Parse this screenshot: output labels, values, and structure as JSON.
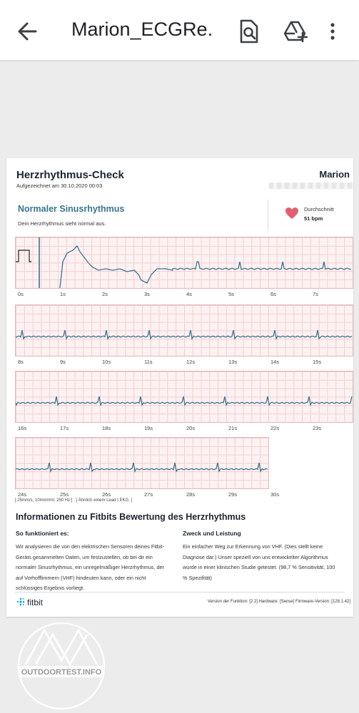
{
  "appbar": {
    "title": "Marion_ECGRe...",
    "back_icon": "arrow-back-icon",
    "actions": [
      "search-document-icon",
      "add-to-drive-icon",
      "more-vert-icon"
    ]
  },
  "report": {
    "title": "Herzrhythmus-Check",
    "recorded": "Aufgezeichnet am 30.10.2020 00:03",
    "name": "Marion",
    "rhythm_title": "Normaler Sinusrhythmus",
    "rhythm_desc": "Dein Herzrhythmus sieht normal aus.",
    "hr_label": "Durchschnitt",
    "hr_value": "51 bpm",
    "heart_color": "#e45f6d",
    "trace_color": "#3a7590",
    "grid_color": "#f1c9c9",
    "rows": [
      {
        "ticks": [
          "0s",
          "1s",
          "2s",
          "3s",
          "4s",
          "5s",
          "6s",
          "7s"
        ]
      },
      {
        "ticks": [
          "8s",
          "9s",
          "10s",
          "11s",
          "12s",
          "13s",
          "14s",
          "15s"
        ]
      },
      {
        "ticks": [
          "16s",
          "17s",
          "18s",
          "19s",
          "20s",
          "21s",
          "22s",
          "23s"
        ]
      },
      {
        "ticks": [
          "24s",
          "25s",
          "26s",
          "27s",
          "28s",
          "29s",
          "30s"
        ]
      }
    ],
    "ecg_note": "[ 25mm/s, 10mm/mV, 250 Hz ] : [ Ähnlich einem Lead I EKG. ]",
    "info_title": "Informationen zu Fitbits Bewertung des Herzrhythmus",
    "col1_heading": "So funktioniert es:",
    "col1_text": "Wir analysieren die von den elektrischen Sensoren deines Fitbit-Geräts gesammelten Daten, um festzustellen, ob bei dir ein normaler Sinusrhythmus, ein unregelmäßiger Herzrhythmus, der auf Vorhofflimmern (VHF) hindeuten kann, oder ein nicht schlüssiges Ergebnis vorliegt.",
    "col2_heading": "Zweck und Leistung",
    "col2_text": "Ein einfacher Weg zur Erkennung von VHF. (Dies stellt keine Diagnose dar.) Unser speziell von uns entwickelter Algorithmus wurde in einer klinischen Studie getestet. (98,7 % Sensitivität, 100 % Spezifität)",
    "brand": "fitbit",
    "version": "Version der Funktion: [2.2] Hardware: [Sense] Firmware-Version: [128.1.42]"
  },
  "watermark": {
    "text": "OUTDOORTEST.INFO"
  }
}
